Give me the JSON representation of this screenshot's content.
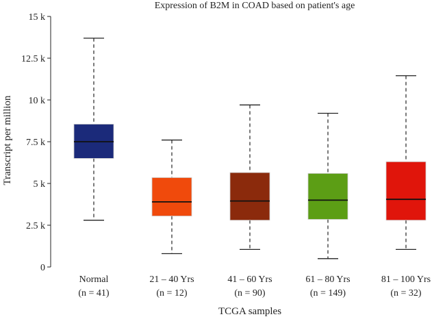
{
  "chart_data": {
    "type": "box",
    "title": "Expression of B2M in COAD based on patient's age",
    "xlabel": "TCGA samples",
    "ylabel": "Transcript per million",
    "ylim": [
      0,
      15000
    ],
    "yticks": [
      0,
      2500,
      5000,
      7500,
      10000,
      12500,
      15000
    ],
    "ytick_labels": [
      "0",
      "2.5 k",
      "5 k",
      "7.5 k",
      "10 k",
      "12.5 k",
      "15 k"
    ],
    "grid": false,
    "legend": "none",
    "groups": [
      {
        "name": "Normal",
        "n_label": "(n = 41)",
        "color": "#1b2a7a",
        "min": 2800,
        "q1": 6500,
        "median": 7500,
        "q3": 8550,
        "max": 13700
      },
      {
        "name": "21 – 40 Yrs",
        "n_label": "(n = 12)",
        "color": "#f04a0c",
        "min": 800,
        "q1": 3050,
        "median": 3900,
        "q3": 5350,
        "max": 7600
      },
      {
        "name": "41 – 60 Yrs",
        "n_label": "(n = 90)",
        "color": "#8b2a0c",
        "min": 1050,
        "q1": 2800,
        "median": 3950,
        "q3": 5650,
        "max": 9700
      },
      {
        "name": "61 – 80 Yrs",
        "n_label": "(n = 149)",
        "color": "#5c9e15",
        "min": 500,
        "q1": 2850,
        "median": 4000,
        "q3": 5600,
        "max": 9200
      },
      {
        "name": "81 – 100 Yrs",
        "n_label": "(n = 32)",
        "color": "#e0150b",
        "min": 1050,
        "q1": 2800,
        "median": 4050,
        "q3": 6300,
        "max": 11450
      }
    ]
  }
}
